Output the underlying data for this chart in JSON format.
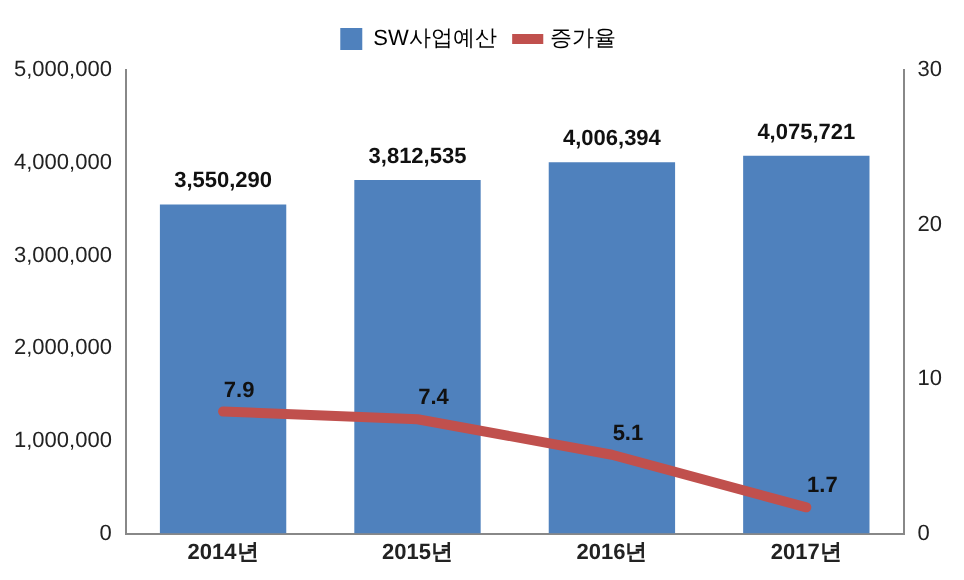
{
  "chart_data": {
    "type": "bar",
    "categories": [
      "2014년",
      "2015년",
      "2016년",
      "2017년"
    ],
    "series": [
      {
        "name": "SW사업예산",
        "color": "#4f81bd",
        "values": [
          3550290,
          3812535,
          4006394,
          4075721
        ],
        "value_labels": [
          "3,550,290",
          "3,812,535",
          "4,006,394",
          "4,075,721"
        ]
      },
      {
        "name": "증가율",
        "type": "line",
        "axis": "y2",
        "color": "#c0504d",
        "values": [
          7.9,
          7.4,
          5.1,
          1.7
        ],
        "value_labels": [
          "7.9",
          "7.4",
          "5.1",
          "1.7"
        ]
      }
    ],
    "ylim": [
      0,
      5000000
    ],
    "yticks": [
      0,
      {
        "value": 1000000,
        "label": "1,000,000"
      },
      {
        "value": 2000000,
        "label": "2,000,000"
      },
      {
        "value": 3000000,
        "label": "3,000,000"
      },
      {
        "value": 4000000,
        "label": "4,000,000"
      },
      {
        "value": 5000000,
        "label": "5,000,000"
      }
    ],
    "y2lim": [
      0,
      30
    ],
    "y2ticks": [
      0,
      10,
      20,
      30
    ],
    "legend": "top",
    "grid": false,
    "marker": "none"
  }
}
